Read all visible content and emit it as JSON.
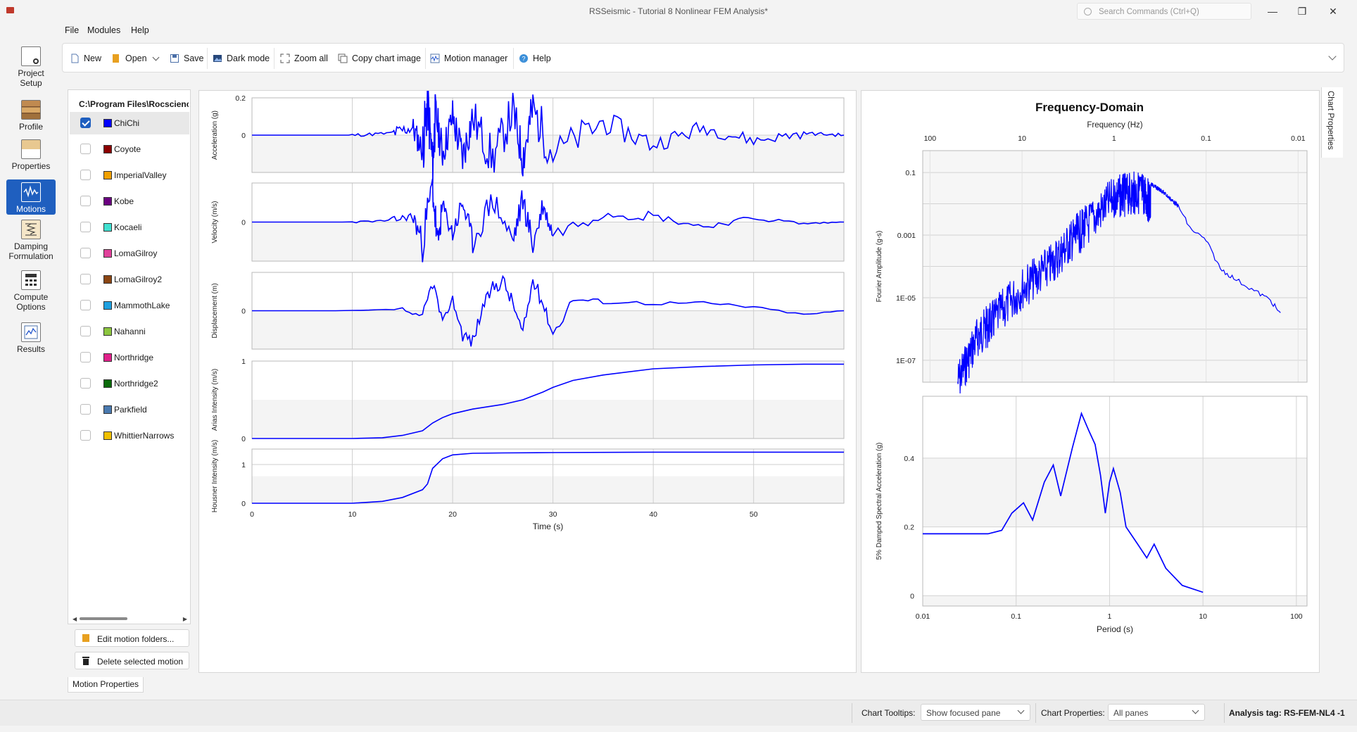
{
  "window": {
    "title": "RSSeismic - Tutorial 8 Nonlinear FEM Analysis*",
    "search_placeholder": "Search Commands (Ctrl+Q)",
    "minimize": "—",
    "restore": "❐",
    "close": "✕"
  },
  "menu": [
    "File",
    "Modules",
    "Help"
  ],
  "toolbar": {
    "new": "New",
    "open": "Open",
    "save": "Save",
    "dark_mode": "Dark mode",
    "zoom_all": "Zoom all",
    "copy_chart_image": "Copy chart image",
    "motion_manager": "Motion manager",
    "help": "Help"
  },
  "nav": [
    {
      "label1": "Project",
      "label2": "Setup",
      "icon": "gear-document-icon"
    },
    {
      "label1": "Profile",
      "label2": "",
      "icon": "soil-layers-icon"
    },
    {
      "label1": "Properties",
      "label2": "",
      "icon": "edit-properties-icon"
    },
    {
      "label1": "Motions",
      "label2": "",
      "icon": "waveform-icon",
      "active": true
    },
    {
      "label1": "Damping",
      "label2": "Formulation",
      "icon": "spring-icon"
    },
    {
      "label1": "Compute",
      "label2": "Options",
      "icon": "calculator-icon"
    },
    {
      "label1": "Results",
      "label2": "",
      "icon": "results-chart-icon"
    }
  ],
  "motions": {
    "folder": "C:\\Program Files\\Rocscience",
    "items": [
      {
        "name": "ChiChi",
        "color": "#0000ff",
        "checked": true
      },
      {
        "name": "Coyote",
        "color": "#8b0000",
        "checked": false
      },
      {
        "name": "ImperialValley",
        "color": "#f0a000",
        "checked": false
      },
      {
        "name": "Kobe",
        "color": "#6a0080",
        "checked": false
      },
      {
        "name": "Kocaeli",
        "color": "#40e0d0",
        "checked": false
      },
      {
        "name": "LomaGilroy",
        "color": "#e0409a",
        "checked": false
      },
      {
        "name": "LomaGilroy2",
        "color": "#8b4513",
        "checked": false
      },
      {
        "name": "MammothLake",
        "color": "#1ea0e0",
        "checked": false
      },
      {
        "name": "Nahanni",
        "color": "#8cc63f",
        "checked": false
      },
      {
        "name": "Northridge",
        "color": "#e0208a",
        "checked": false
      },
      {
        "name": "Northridge2",
        "color": "#0a6a0a",
        "checked": false
      },
      {
        "name": "Parkfield",
        "color": "#4a7ab0",
        "checked": false
      },
      {
        "name": "WhittierNarrows",
        "color": "#f0c000",
        "checked": false
      }
    ],
    "edit_button": "Edit motion folders...",
    "delete_button": "Delete selected motion"
  },
  "tabs": {
    "motion_properties": "Motion Properties",
    "chart_properties": "Chart Properties"
  },
  "status": {
    "chart_tooltips_label": "Chart Tooltips:",
    "chart_tooltips_value": "Show focused pane",
    "chart_properties_label": "Chart Properties:",
    "chart_properties_value": "All panes",
    "analysis_tag": "Analysis tag: RS-FEM-NL4 -1"
  },
  "chart_data": [
    {
      "type": "line",
      "panel": "time-domain",
      "xlabel": "Time (s)",
      "xlim": [
        0,
        59
      ],
      "xticks": [
        0,
        10,
        20,
        30,
        40,
        50
      ],
      "series_color": "#0000ff",
      "subplots": [
        {
          "ylabel": "Acceleration (g)",
          "yticks": [
            0,
            0.2
          ],
          "ylim": [
            -0.2,
            0.2
          ],
          "x": [
            0,
            5,
            10,
            14,
            16,
            17,
            17.5,
            18,
            18.3,
            19,
            20,
            21,
            22,
            24,
            26,
            27,
            28,
            30,
            35,
            40,
            45,
            50,
            55,
            59
          ],
          "y": [
            0,
            0,
            0,
            0.01,
            0.04,
            -0.08,
            0.18,
            -0.16,
            0.12,
            -0.1,
            0.1,
            -0.12,
            0.1,
            -0.13,
            0.13,
            -0.12,
            0.14,
            -0.1,
            0.07,
            -0.05,
            0.04,
            -0.03,
            0.01,
            0
          ]
        },
        {
          "ylabel": "Velocity (m/s)",
          "yticks": [
            0
          ],
          "ylim": [
            -0.5,
            0.5
          ],
          "x": [
            0,
            10,
            14,
            16,
            17,
            18,
            18.5,
            19,
            20,
            21,
            22,
            24,
            26,
            27,
            28,
            29,
            30,
            35,
            40,
            45,
            50,
            55,
            59
          ],
          "y": [
            0,
            0,
            0.02,
            0.08,
            -0.25,
            0.45,
            -0.3,
            0.2,
            -0.15,
            0.25,
            -0.25,
            0.3,
            -0.25,
            0.3,
            -0.3,
            0.2,
            -0.15,
            0.12,
            0.08,
            -0.06,
            0.05,
            -0.02,
            0
          ]
        },
        {
          "ylabel": "Displacement (m)",
          "yticks": [
            0
          ],
          "ylim": [
            -0.5,
            0.5
          ],
          "x": [
            0,
            10,
            15,
            17,
            18,
            19,
            20,
            21,
            22,
            23,
            24,
            25,
            26,
            27,
            28,
            29,
            30,
            32,
            35,
            40,
            45,
            50,
            55,
            59
          ],
          "y": [
            0,
            0,
            0.02,
            -0.1,
            0.38,
            -0.15,
            0.15,
            -0.3,
            -0.4,
            0.05,
            0.3,
            0.4,
            0.1,
            -0.3,
            0.4,
            0.1,
            -0.3,
            0.15,
            0.12,
            0.1,
            0.1,
            0.05,
            -0.05,
            0
          ]
        },
        {
          "ylabel": "Arias Intensity (m/s)",
          "yticks": [
            0,
            1
          ],
          "ylim": [
            0,
            1
          ],
          "x": [
            0,
            10,
            13,
            15,
            17,
            18,
            19,
            20,
            22,
            25,
            27,
            29,
            30,
            32,
            35,
            40,
            45,
            50,
            55,
            59
          ],
          "y": [
            0,
            0,
            0.01,
            0.04,
            0.1,
            0.2,
            0.27,
            0.32,
            0.38,
            0.44,
            0.5,
            0.6,
            0.66,
            0.75,
            0.82,
            0.9,
            0.93,
            0.95,
            0.96,
            0.96
          ]
        },
        {
          "ylabel": "Housner Intensity (m/s)",
          "yticks": [
            0,
            1
          ],
          "ylim": [
            0,
            1.4
          ],
          "x": [
            0,
            10,
            13,
            15,
            17,
            17.5,
            18,
            19,
            20,
            22,
            25,
            30,
            40,
            50,
            59
          ],
          "y": [
            0,
            0,
            0.05,
            0.15,
            0.35,
            0.5,
            0.9,
            1.15,
            1.25,
            1.29,
            1.3,
            1.31,
            1.32,
            1.32,
            1.32
          ]
        }
      ]
    },
    {
      "type": "line",
      "panel": "frequency-domain",
      "title": "Frequency-Domain",
      "subplots": [
        {
          "ylabel": "Fourier Amplitude (g-s)",
          "xlabel": "Frequency (Hz)",
          "x_scale": "log",
          "y_scale": "log",
          "xticks": [
            100,
            10,
            1,
            0.1,
            0.01
          ],
          "yticks": [
            "0.1",
            "0.001",
            "1E-05",
            "1E-07"
          ],
          "x": [
            50,
            30,
            20,
            10,
            5,
            3,
            2,
            1,
            0.7,
            0.5,
            0.4,
            0.3,
            0.2,
            0.15,
            0.1,
            0.07,
            0.05,
            0.03,
            0.02,
            0.015
          ],
          "y": [
            1e-07,
            3e-06,
            1e-05,
            0.0001,
            0.0005,
            0.003,
            0.01,
            0.08,
            0.1,
            0.12,
            0.05,
            0.03,
            0.01,
            0.002,
            0.0008,
            0.0001,
            5e-05,
            2e-05,
            1e-05,
            3e-06
          ]
        },
        {
          "ylabel": "5% Damped Spectral Acceleration (g)",
          "xlabel": "Period (s)",
          "x_scale": "log",
          "xticks": [
            0.01,
            0.1,
            1,
            10,
            100
          ],
          "yticks": [
            0,
            0.2,
            0.4
          ],
          "ylim": [
            -0.03,
            0.58
          ],
          "x": [
            0.01,
            0.05,
            0.07,
            0.09,
            0.12,
            0.15,
            0.2,
            0.25,
            0.3,
            0.4,
            0.5,
            0.6,
            0.7,
            0.8,
            0.9,
            1.0,
            1.1,
            1.3,
            1.5,
            2,
            2.5,
            3,
            4,
            6,
            10
          ],
          "y": [
            0.18,
            0.18,
            0.19,
            0.24,
            0.27,
            0.22,
            0.33,
            0.38,
            0.29,
            0.43,
            0.53,
            0.48,
            0.44,
            0.35,
            0.24,
            0.33,
            0.37,
            0.3,
            0.2,
            0.15,
            0.11,
            0.15,
            0.08,
            0.03,
            0.01
          ]
        }
      ]
    }
  ]
}
